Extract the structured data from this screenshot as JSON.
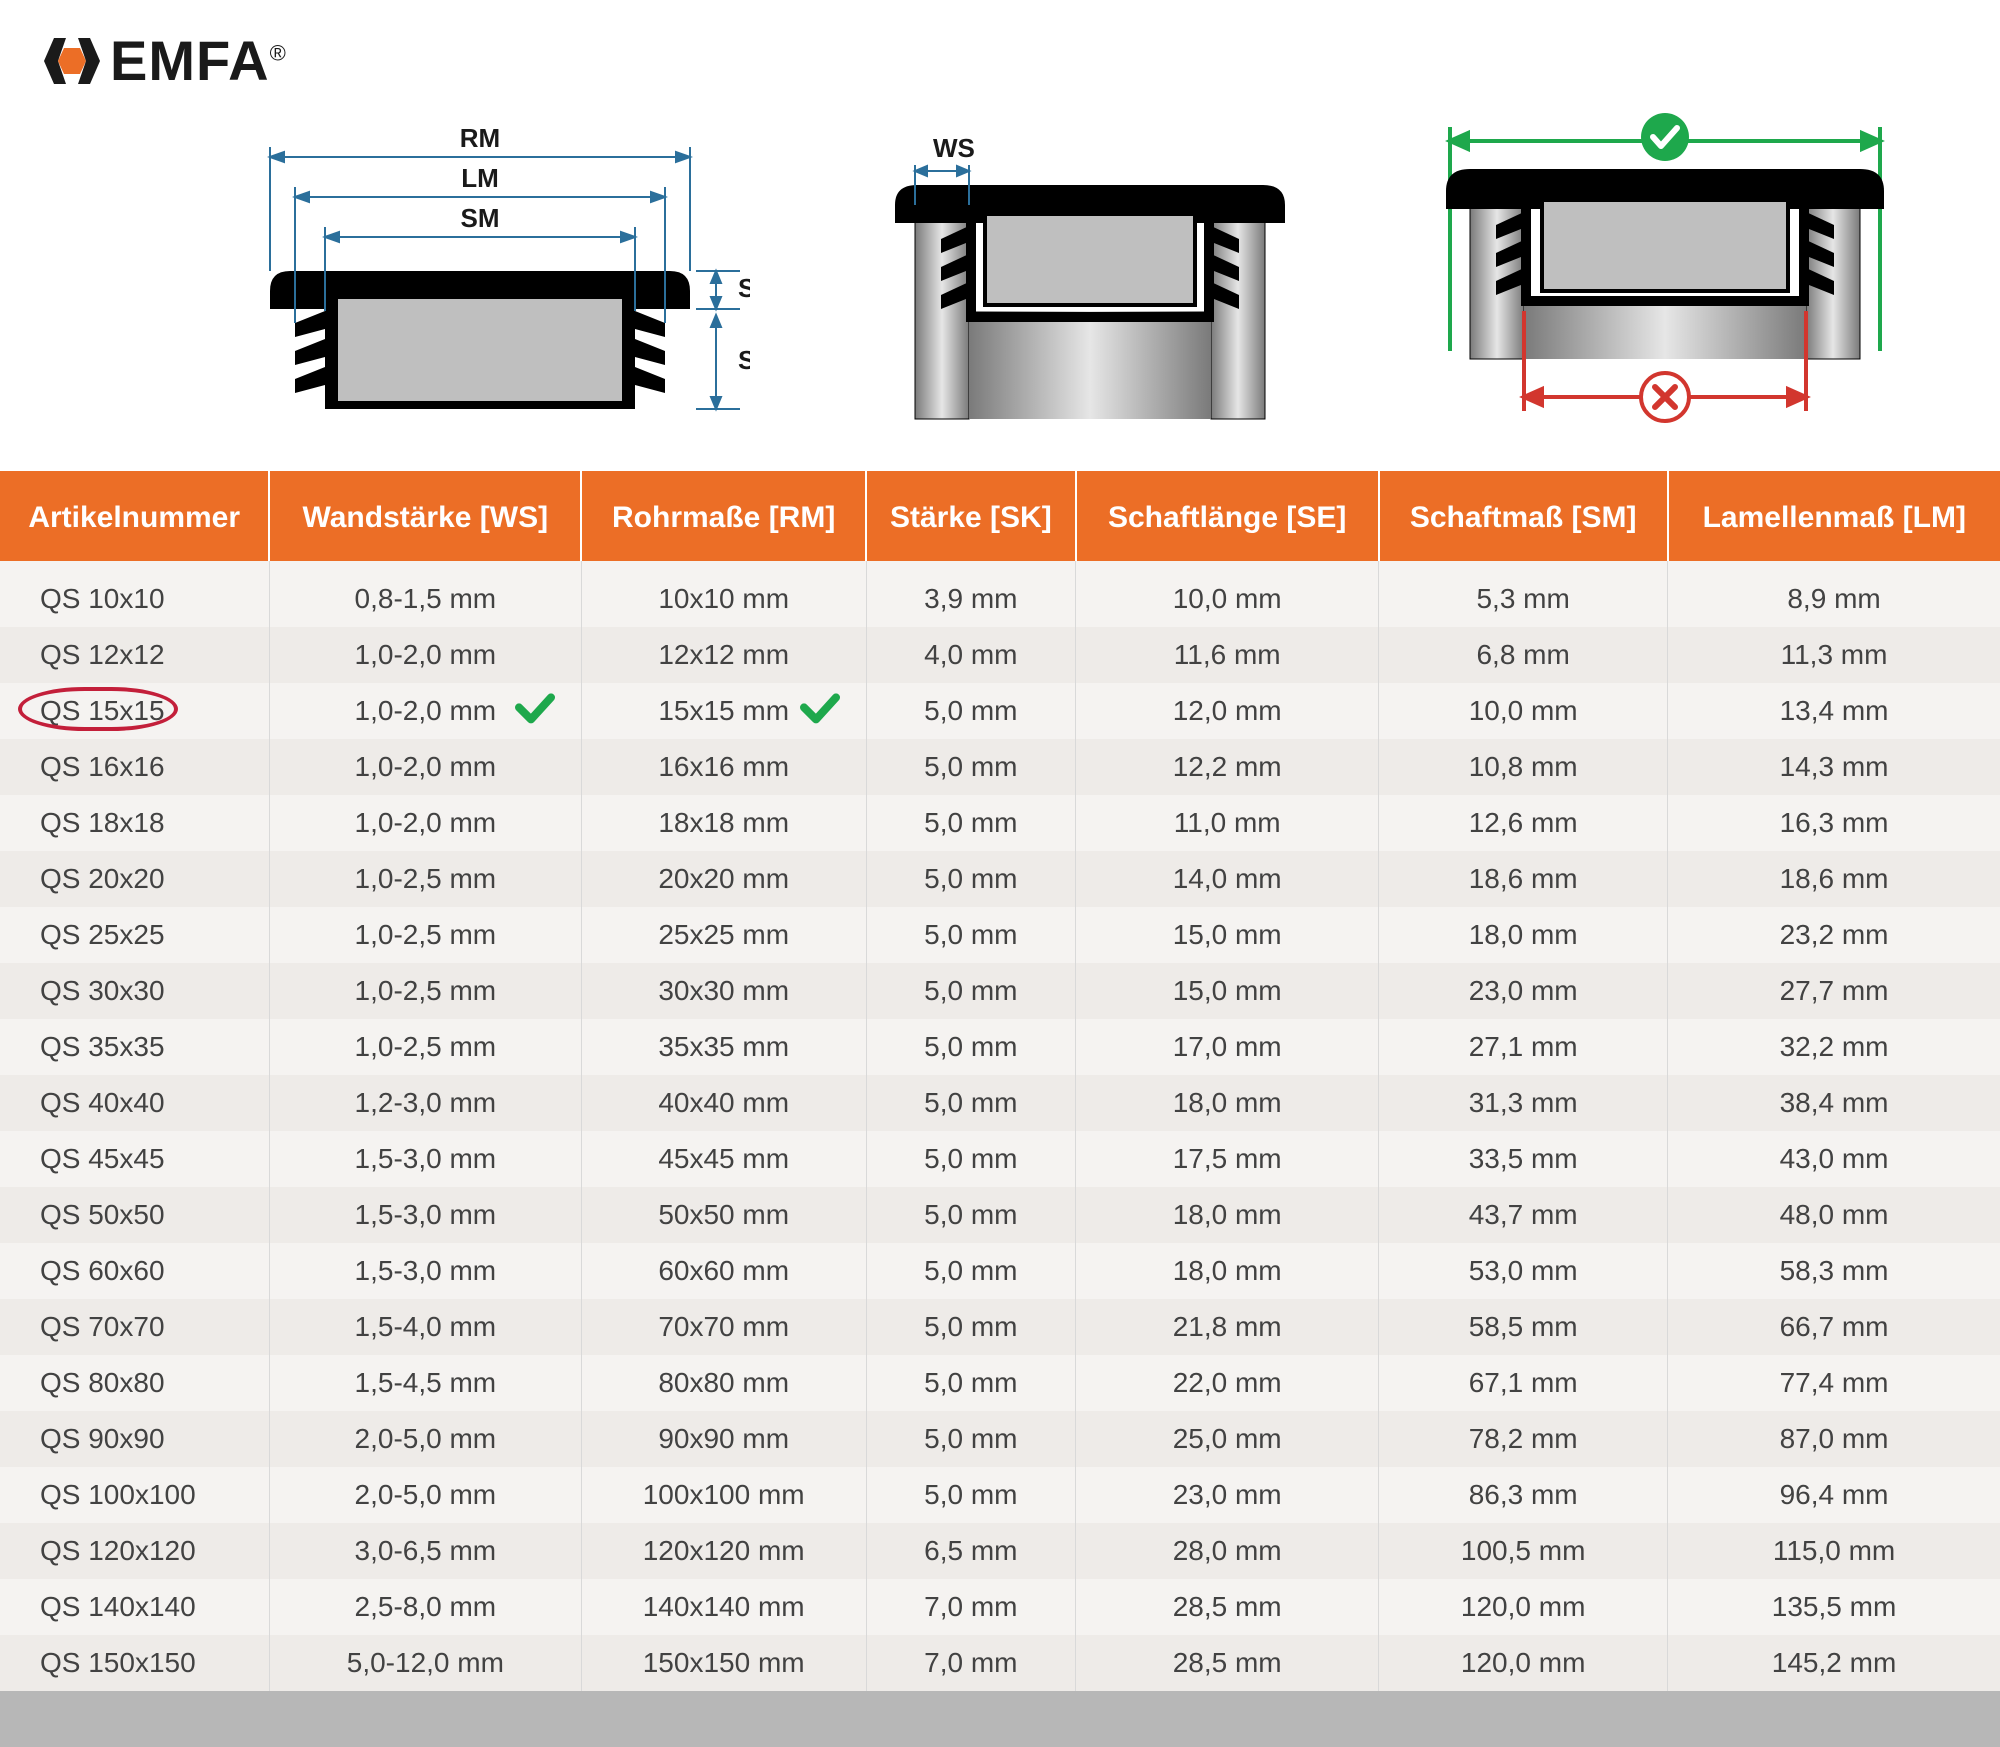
{
  "brand": {
    "name": "EMFA",
    "reg": "®",
    "accent": "#ec6e26",
    "black": "#1a1a1a"
  },
  "diagram": {
    "dimLabels": {
      "RM": "RM",
      "LM": "LM",
      "SM": "SM",
      "SK": "SK",
      "SE": "SE",
      "WS": "WS"
    },
    "colors": {
      "dimLine": "#2b6f9b",
      "plugBody": "#000000",
      "plugFill": "#bfbfbf",
      "tubeFill": "#bdbdbd",
      "okGreen": "#1ea84c",
      "badRed": "#d2362e",
      "white": "#ffffff"
    },
    "labelFontSize": 26
  },
  "table": {
    "headerBg": "#ec6e26",
    "headerColor": "#ffffff",
    "rowOdd": "#f5f3f1",
    "rowEven": "#eeebe8",
    "border": "#d9d9d9",
    "textColor": "#424242",
    "highlightColor": "#c31f3a",
    "checkColor": "#1ea84c",
    "headerFontSize": 30,
    "cellFontSize": 28,
    "columns": [
      "Artikelnummer",
      "Wandstärke [WS]",
      "Rohrmaße [RM]",
      "Stärke [SK]",
      "Schaftlänge [SE]",
      "Schaftmaß [SM]",
      "Lamellenmaß [LM]"
    ],
    "highlightedRow": 2,
    "checkColumns": [
      1,
      2
    ],
    "rows": [
      [
        "QS 10x10",
        "0,8-1,5 mm",
        "10x10 mm",
        "3,9 mm",
        "10,0 mm",
        "5,3 mm",
        "8,9 mm"
      ],
      [
        "QS 12x12",
        "1,0-2,0 mm",
        "12x12 mm",
        "4,0 mm",
        "11,6 mm",
        "6,8 mm",
        "11,3 mm"
      ],
      [
        "QS 15x15",
        "1,0-2,0 mm",
        "15x15 mm",
        "5,0 mm",
        "12,0 mm",
        "10,0 mm",
        "13,4 mm"
      ],
      [
        "QS 16x16",
        "1,0-2,0 mm",
        "16x16 mm",
        "5,0 mm",
        "12,2 mm",
        "10,8 mm",
        "14,3 mm"
      ],
      [
        "QS 18x18",
        "1,0-2,0 mm",
        "18x18 mm",
        "5,0 mm",
        "11,0 mm",
        "12,6 mm",
        "16,3 mm"
      ],
      [
        "QS 20x20",
        "1,0-2,5 mm",
        "20x20 mm",
        "5,0 mm",
        "14,0 mm",
        "18,6 mm",
        "18,6 mm"
      ],
      [
        "QS 25x25",
        "1,0-2,5 mm",
        "25x25 mm",
        "5,0 mm",
        "15,0 mm",
        "18,0 mm",
        "23,2 mm"
      ],
      [
        "QS 30x30",
        "1,0-2,5 mm",
        "30x30 mm",
        "5,0 mm",
        "15,0 mm",
        "23,0 mm",
        "27,7 mm"
      ],
      [
        "QS 35x35",
        "1,0-2,5 mm",
        "35x35 mm",
        "5,0 mm",
        "17,0 mm",
        "27,1 mm",
        "32,2 mm"
      ],
      [
        "QS 40x40",
        "1,2-3,0 mm",
        "40x40 mm",
        "5,0 mm",
        "18,0 mm",
        "31,3 mm",
        "38,4 mm"
      ],
      [
        "QS 45x45",
        "1,5-3,0 mm",
        "45x45 mm",
        "5,0 mm",
        "17,5 mm",
        "33,5 mm",
        "43,0 mm"
      ],
      [
        "QS 50x50",
        "1,5-3,0 mm",
        "50x50 mm",
        "5,0 mm",
        "18,0 mm",
        "43,7 mm",
        "48,0 mm"
      ],
      [
        "QS 60x60",
        "1,5-3,0 mm",
        "60x60 mm",
        "5,0 mm",
        "18,0 mm",
        "53,0 mm",
        "58,3 mm"
      ],
      [
        "QS 70x70",
        "1,5-4,0 mm",
        "70x70 mm",
        "5,0 mm",
        "21,8 mm",
        "58,5 mm",
        "66,7 mm"
      ],
      [
        "QS 80x80",
        "1,5-4,5 mm",
        "80x80 mm",
        "5,0 mm",
        "22,0 mm",
        "67,1 mm",
        "77,4 mm"
      ],
      [
        "QS 90x90",
        "2,0-5,0 mm",
        "90x90 mm",
        "5,0 mm",
        "25,0 mm",
        "78,2 mm",
        "87,0 mm"
      ],
      [
        "QS 100x100",
        "2,0-5,0 mm",
        "100x100 mm",
        "5,0 mm",
        "23,0 mm",
        "86,3 mm",
        "96,4 mm"
      ],
      [
        "QS 120x120",
        "3,0-6,5 mm",
        "120x120 mm",
        "6,5 mm",
        "28,0 mm",
        "100,5 mm",
        "115,0 mm"
      ],
      [
        "QS 140x140",
        "2,5-8,0 mm",
        "140x140 mm",
        "7,0 mm",
        "28,5 mm",
        "120,0 mm",
        "135,5 mm"
      ],
      [
        "QS 150x150",
        "5,0-12,0 mm",
        "150x150 mm",
        "7,0 mm",
        "28,5 mm",
        "120,0 mm",
        "145,2 mm"
      ]
    ]
  }
}
